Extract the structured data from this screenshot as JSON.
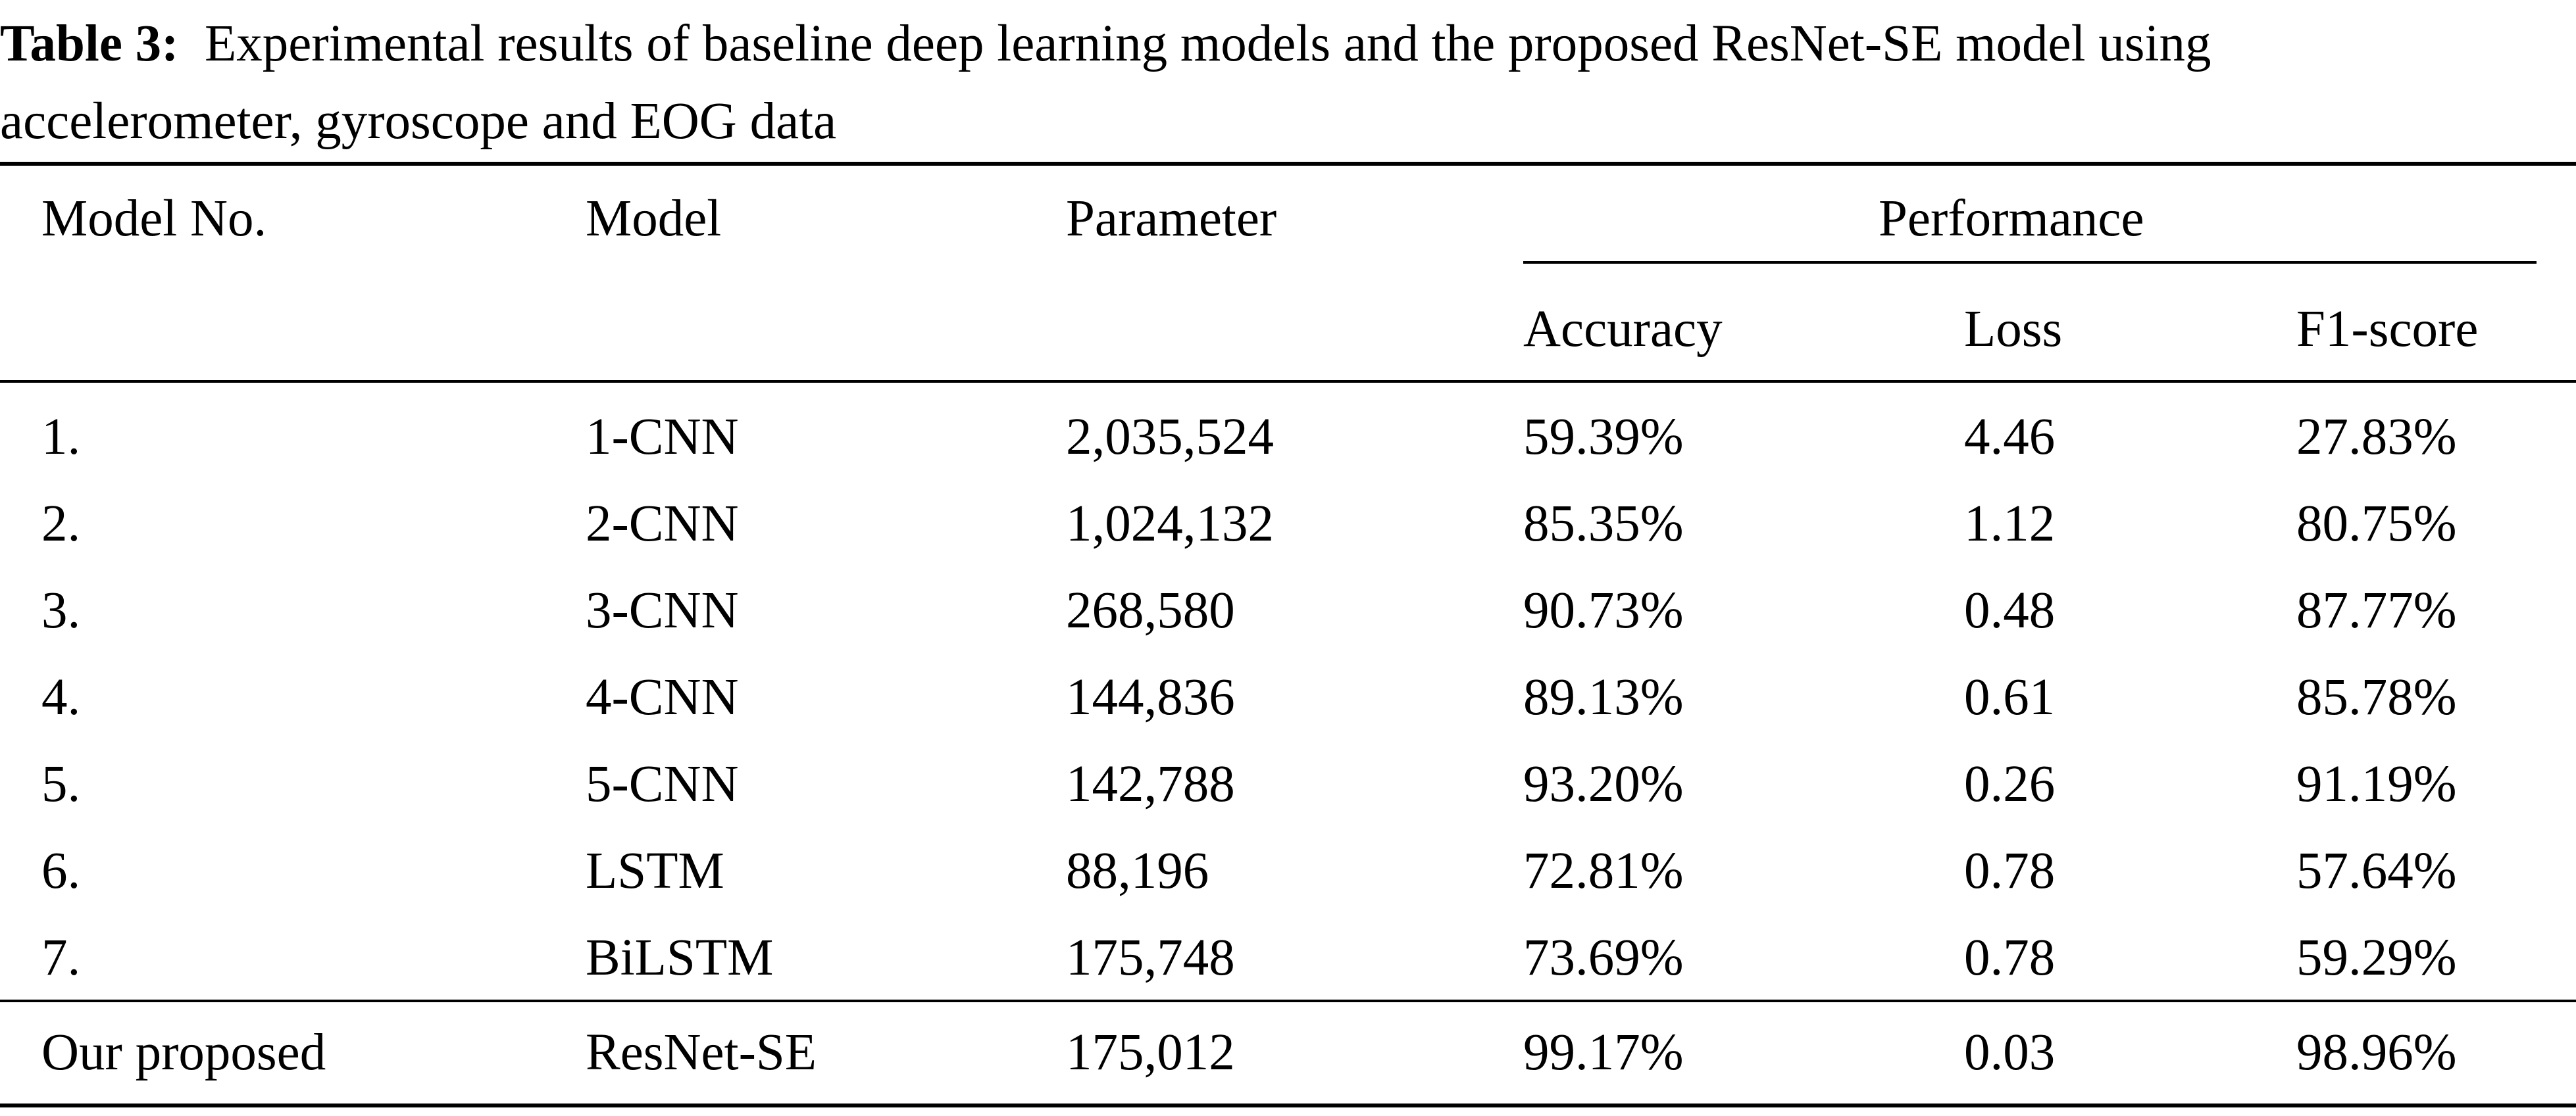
{
  "caption": {
    "label": "Table 3:",
    "text_line1": "Experimental results of baseline deep learning models and the proposed ResNet-SE model using",
    "text_line2": "accelerometer, gyroscope and EOG data"
  },
  "header": {
    "model_no": "Model No.",
    "model": "Model",
    "parameter": "Parameter",
    "performance": "Performance",
    "accuracy": "Accuracy",
    "loss": "Loss",
    "f1": "F1-score"
  },
  "rows": [
    {
      "no": "1.",
      "model": "1-CNN",
      "parameter": "2,035,524",
      "accuracy": "59.39%",
      "loss": "4.46",
      "f1": "27.83%"
    },
    {
      "no": "2.",
      "model": "2-CNN",
      "parameter": "1,024,132",
      "accuracy": "85.35%",
      "loss": "1.12",
      "f1": "80.75%"
    },
    {
      "no": "3.",
      "model": "3-CNN",
      "parameter": "268,580",
      "accuracy": "90.73%",
      "loss": "0.48",
      "f1": "87.77%"
    },
    {
      "no": "4.",
      "model": "4-CNN",
      "parameter": "144,836",
      "accuracy": "89.13%",
      "loss": "0.61",
      "f1": "85.78%"
    },
    {
      "no": "5.",
      "model": "5-CNN",
      "parameter": "142,788",
      "accuracy": "93.20%",
      "loss": "0.26",
      "f1": "91.19%"
    },
    {
      "no": "6.",
      "model": "LSTM",
      "parameter": "88,196",
      "accuracy": "72.81%",
      "loss": "0.78",
      "f1": "57.64%"
    },
    {
      "no": "7.",
      "model": "BiLSTM",
      "parameter": "175,748",
      "accuracy": "73.69%",
      "loss": "0.78",
      "f1": "59.29%"
    }
  ],
  "proposed": {
    "no": "Our proposed",
    "model": "ResNet-SE",
    "parameter": "175,012",
    "accuracy": "99.17%",
    "loss": "0.03",
    "f1": "98.96%"
  }
}
